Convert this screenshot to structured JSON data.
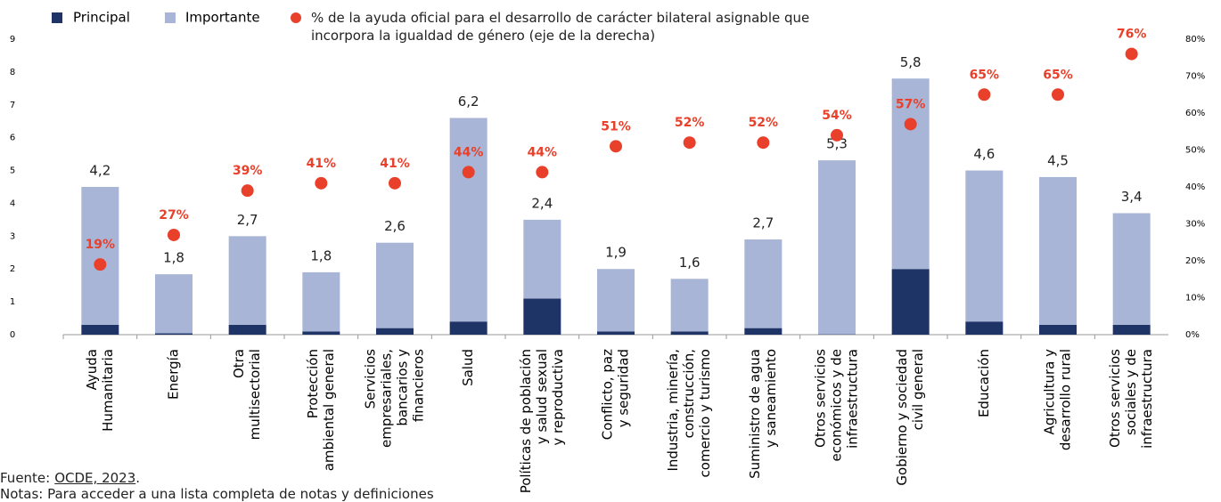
{
  "chart_data": {
    "type": "bar",
    "categories": [
      [
        "Ayuda",
        "Humanitaria"
      ],
      [
        "Energía"
      ],
      [
        "Otra",
        "multisectorial"
      ],
      [
        "Protección",
        "ambiental general"
      ],
      [
        "Servicios",
        "empresariales,",
        "bancarios y",
        "financieros"
      ],
      [
        "Salud"
      ],
      [
        "Políticas de población",
        "y salud sexual",
        "y reproductiva"
      ],
      [
        "Conflicto, paz",
        "y seguridad"
      ],
      [
        "Industria, minería,",
        "construcción,",
        "comercio y turismo"
      ],
      [
        "Suministro de agua",
        "y saneamiento"
      ],
      [
        "Otros servicios",
        "económicos y de",
        "infraestructura"
      ],
      [
        "Gobierno y sociedad",
        "civil general"
      ],
      [
        "Educación"
      ],
      [
        "Agricultura y",
        "desarrollo rural"
      ],
      [
        "Otros servicios",
        "sociales y de",
        "infraestructura"
      ]
    ],
    "series": [
      {
        "name": "Principal",
        "color": "#1f3466",
        "stack": true,
        "values": [
          0.3,
          0.04,
          0.3,
          0.1,
          0.2,
          0.4,
          1.1,
          0.1,
          0.1,
          0.2,
          0.01,
          2,
          0.4,
          0.3,
          0.3
        ],
        "value_labels": [
          "0,3",
          "0,04",
          "0,3",
          "0,1",
          "0,2",
          "0,4",
          "1,1",
          "0,1",
          "0,1",
          "0,2",
          "0,01",
          "2",
          "0,4",
          "0,3",
          "0,3"
        ]
      },
      {
        "name": "Importante",
        "color": "#a8b5d6",
        "stack": true,
        "values": [
          4.2,
          1.8,
          2.7,
          1.8,
          2.6,
          6.2,
          2.4,
          1.9,
          1.6,
          2.7,
          5.3,
          5.8,
          4.6,
          4.5,
          3.4
        ],
        "value_labels": [
          "4,2",
          "1,8",
          "2,7",
          "1,8",
          "2,6",
          "6,2",
          "2,4",
          "1,9",
          "1,6",
          "2,7",
          "5,3",
          "5,8",
          "4,6",
          "4,5",
          "3,4"
        ]
      },
      {
        "name": "% de la ayuda oficial para el desarrollo de carácter bilateral asignable que incorpora la igualdad de género (eje de la derecha)",
        "color": "#e8402a",
        "type": "scatter",
        "axis": "y2",
        "values": [
          19,
          27,
          39,
          41,
          41,
          44,
          44,
          51,
          52,
          52,
          54,
          57,
          65,
          65,
          76
        ],
        "value_labels": [
          "19%",
          "27%",
          "39%",
          "41%",
          "41%",
          "44%",
          "44%",
          "51%",
          "52%",
          "52%",
          "54%",
          "57%",
          "65%",
          "65%",
          "76%"
        ]
      }
    ],
    "ylim": [
      0,
      9
    ],
    "yticks": [
      0,
      1,
      2,
      3,
      4,
      5,
      6,
      7,
      8,
      9
    ],
    "y2lim": [
      0,
      80
    ],
    "y2ticks": [
      {
        "value": 0,
        "label": "0%"
      },
      {
        "value": 10,
        "label": "10%"
      },
      {
        "value": 20,
        "label": "20%"
      },
      {
        "value": 30,
        "label": "30%"
      },
      {
        "value": 40,
        "label": "40%"
      },
      {
        "value": 50,
        "label": "50%"
      },
      {
        "value": 60,
        "label": "60%"
      },
      {
        "value": 70,
        "label": "70%"
      },
      {
        "value": 80,
        "label": "80%"
      }
    ],
    "legend": "top-left",
    "source": {
      "prefix": "Fuente:",
      "link": "OCDE, 2023",
      "suffix": "."
    },
    "notes": "Notas: Para acceder a una lista completa de notas y definiciones"
  }
}
